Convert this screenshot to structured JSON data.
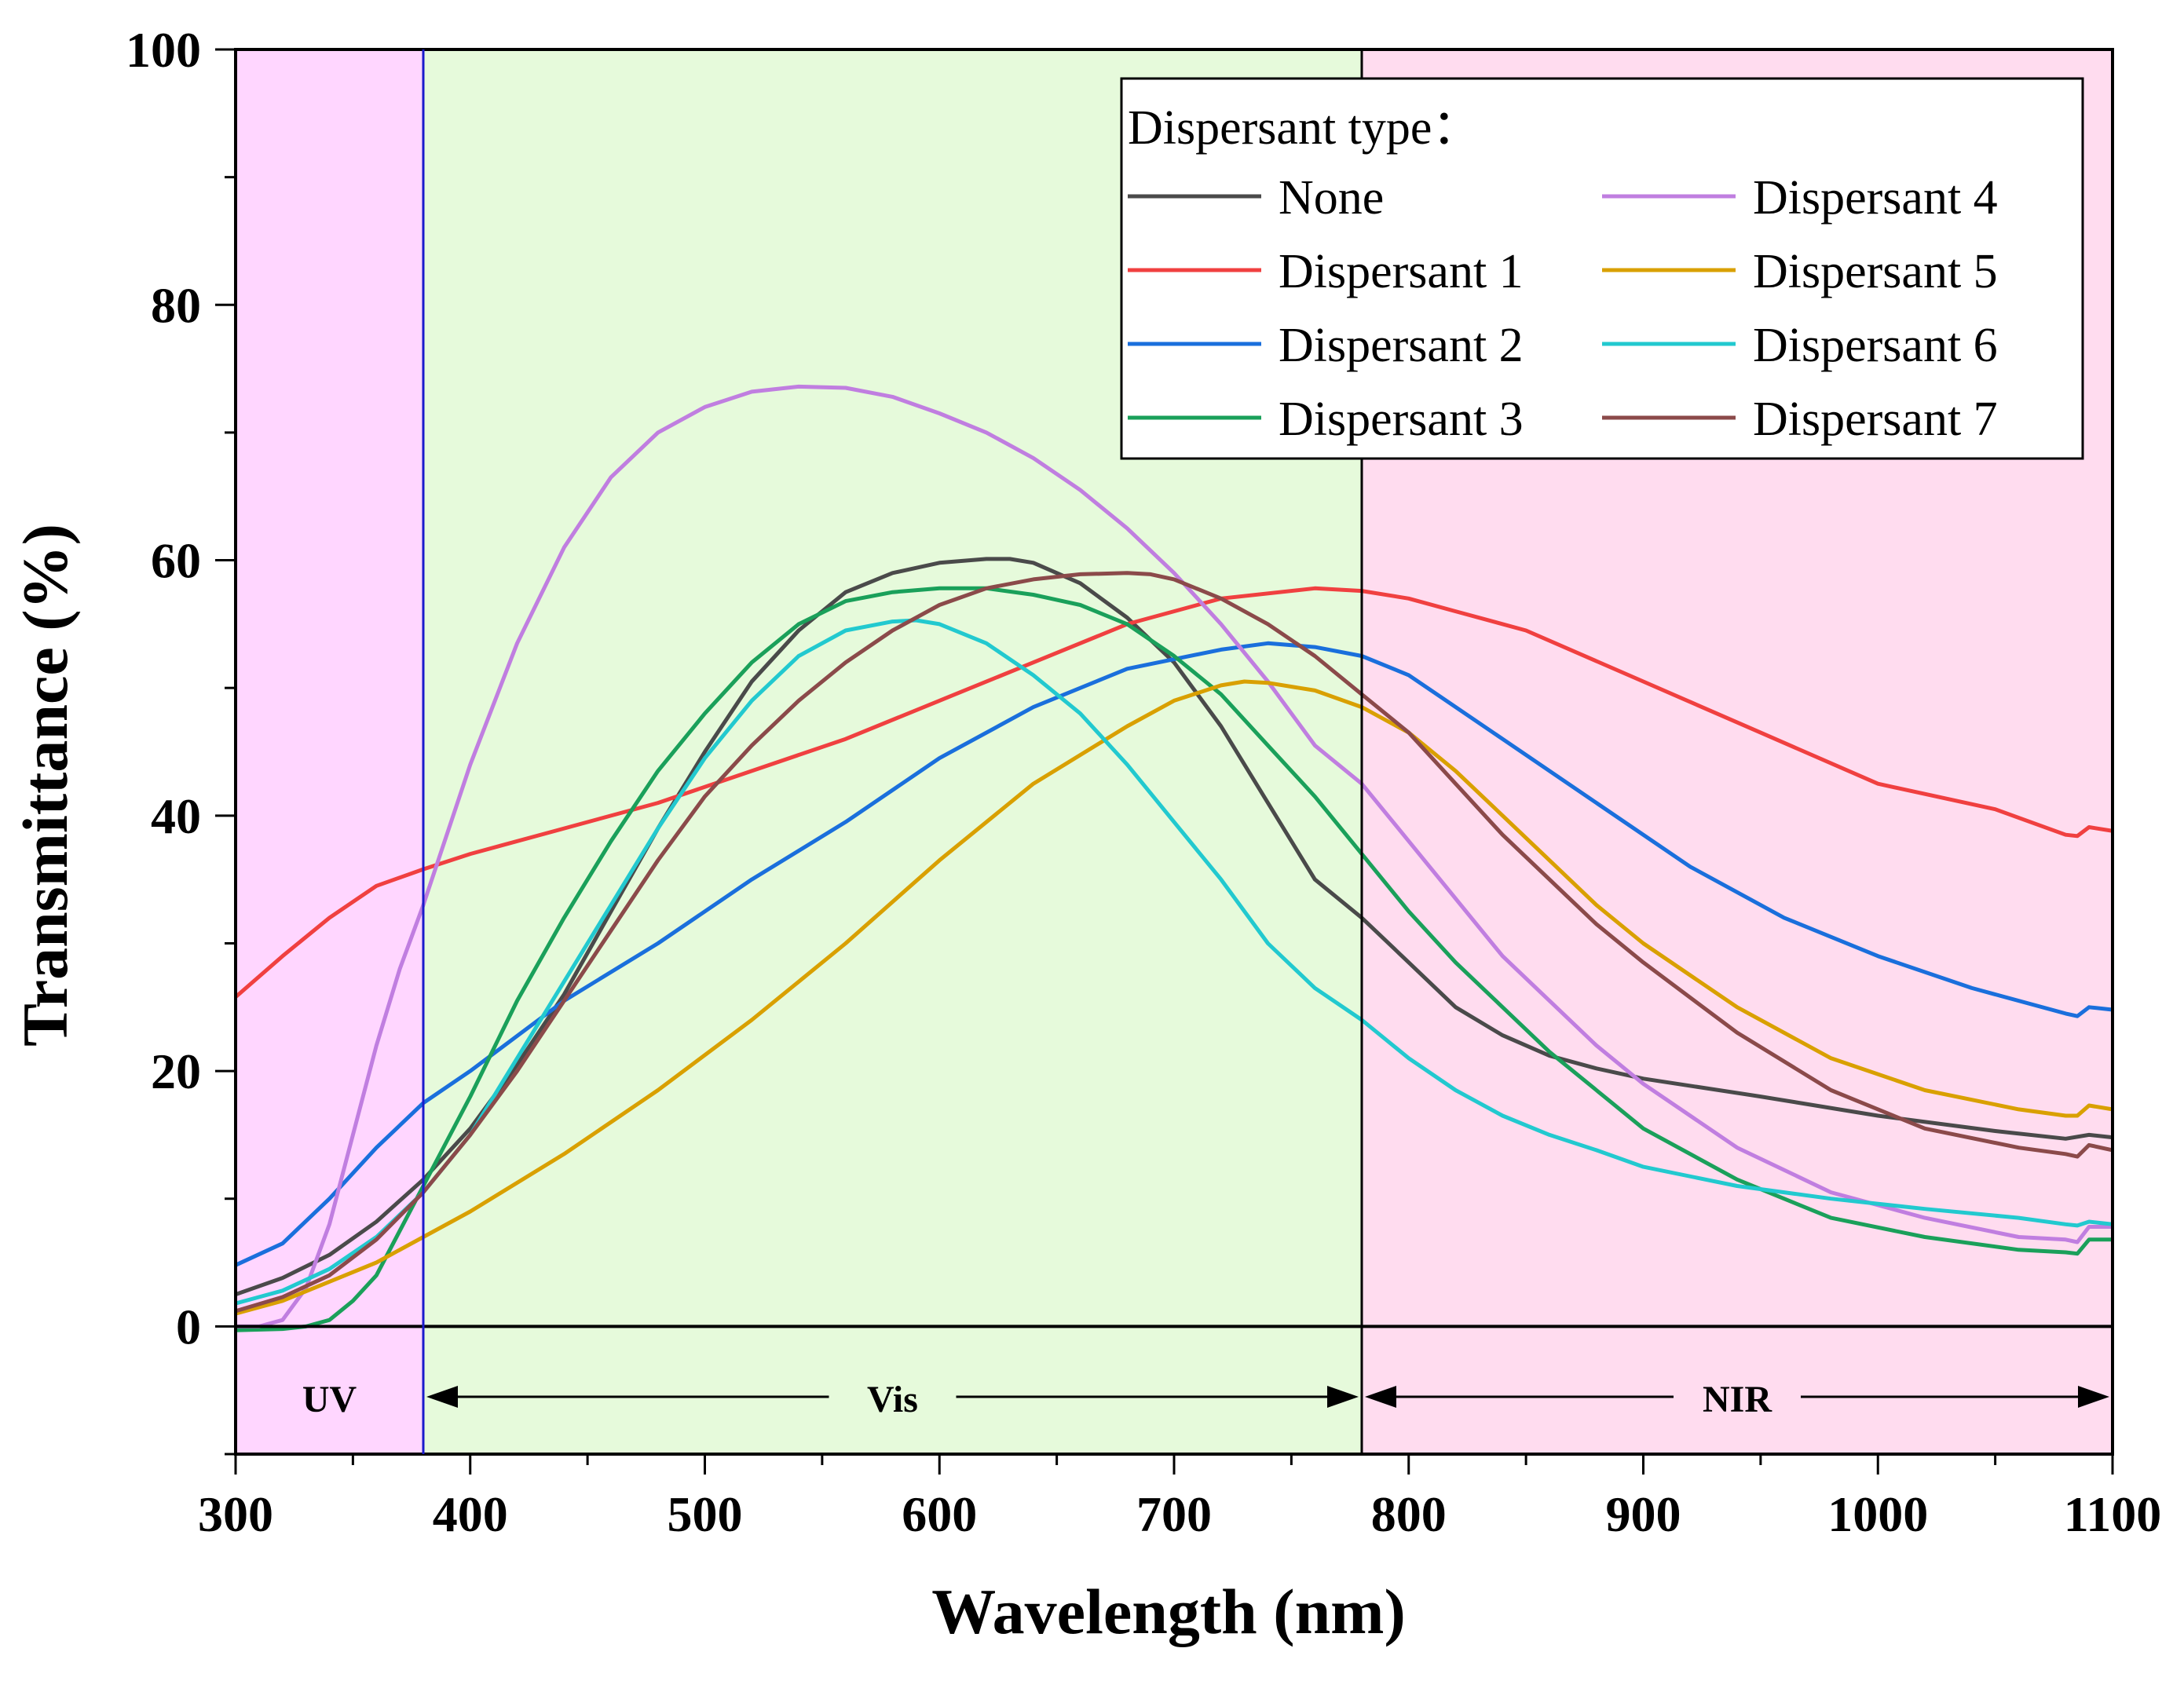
{
  "chart_data": {
    "type": "line",
    "xlabel": "Wavelength (nm)",
    "ylabel": "Transmittance (%)",
    "xlim": [
      300,
      1100
    ],
    "ylim": [
      -10,
      100
    ],
    "x_ticks": [
      "300",
      "400",
      "500",
      "600",
      "700",
      "800",
      "900",
      "1000",
      "1100"
    ],
    "y_ticks": [
      "0",
      "20",
      "40",
      "60",
      "80",
      "100"
    ],
    "regions": [
      {
        "label": "UV",
        "from": 300,
        "to": 380,
        "color": "#ffd6ff"
      },
      {
        "label": "Vis",
        "from": 380,
        "to": 780,
        "color": "#e6fadb"
      },
      {
        "label": "NIR",
        "from": 780,
        "to": 1100,
        "color": "#ffdcef"
      }
    ],
    "legend_title": "Dispersant type：",
    "series": [
      {
        "name": "None",
        "color": "#4a4a4a",
        "x": [
          300,
          320,
          340,
          360,
          380,
          400,
          420,
          440,
          460,
          480,
          500,
          520,
          540,
          560,
          580,
          600,
          620,
          630,
          640,
          660,
          680,
          700,
          720,
          740,
          760,
          780,
          800,
          820,
          840,
          860,
          880,
          900,
          950,
          1000,
          1050,
          1080,
          1090,
          1100
        ],
        "values": [
          2.5,
          3.8,
          5.6,
          8.2,
          11.5,
          15.5,
          20.5,
          26.0,
          32.5,
          39.0,
          45.0,
          50.5,
          54.5,
          57.5,
          59.0,
          59.8,
          60.1,
          60.1,
          59.8,
          58.2,
          55.5,
          52.0,
          47.0,
          41.0,
          35.0,
          32.0,
          28.5,
          25.0,
          22.8,
          21.2,
          20.2,
          19.4,
          18.0,
          16.5,
          15.3,
          14.7,
          15.0,
          14.8
        ]
      },
      {
        "name": "Dispersant 1",
        "color": "#f04040",
        "x": [
          300,
          320,
          340,
          360,
          380,
          400,
          440,
          480,
          520,
          560,
          600,
          640,
          680,
          720,
          760,
          780,
          800,
          820,
          850,
          900,
          950,
          1000,
          1050,
          1080,
          1085,
          1090,
          1100
        ],
        "values": [
          25.8,
          29.0,
          32.0,
          34.5,
          35.8,
          37.0,
          39.0,
          41.0,
          43.5,
          46.0,
          49.0,
          52.0,
          55.0,
          57.0,
          57.8,
          57.6,
          57.0,
          56.0,
          54.5,
          50.5,
          46.5,
          42.5,
          40.5,
          38.5,
          38.4,
          39.1,
          38.8
        ]
      },
      {
        "name": "Dispersant 2",
        "color": "#1a6fdc",
        "x": [
          300,
          320,
          340,
          360,
          380,
          400,
          440,
          480,
          520,
          560,
          600,
          640,
          680,
          720,
          740,
          760,
          780,
          800,
          840,
          880,
          920,
          960,
          1000,
          1040,
          1080,
          1085,
          1090,
          1100
        ],
        "values": [
          4.8,
          6.5,
          10.0,
          14.0,
          17.5,
          20.0,
          25.5,
          30.0,
          35.0,
          39.5,
          44.5,
          48.5,
          51.5,
          53.0,
          53.5,
          53.2,
          52.5,
          51.0,
          46.0,
          41.0,
          36.0,
          32.0,
          29.0,
          26.5,
          24.5,
          24.3,
          25.0,
          24.8
        ]
      },
      {
        "name": "Dispersant 3",
        "color": "#1aa05a",
        "x": [
          300,
          320,
          330,
          340,
          350,
          360,
          380,
          400,
          420,
          440,
          460,
          480,
          500,
          520,
          540,
          560,
          580,
          600,
          620,
          640,
          660,
          680,
          700,
          720,
          740,
          760,
          780,
          800,
          820,
          840,
          860,
          880,
          900,
          940,
          980,
          1020,
          1060,
          1080,
          1085,
          1090,
          1100
        ],
        "values": [
          -0.3,
          -0.2,
          0,
          0.5,
          2.0,
          4.0,
          11.0,
          18.0,
          25.5,
          32.0,
          38.0,
          43.5,
          48.0,
          52.0,
          55.0,
          56.8,
          57.5,
          57.8,
          57.8,
          57.3,
          56.5,
          55.0,
          52.5,
          49.5,
          45.5,
          41.5,
          37.0,
          32.5,
          28.5,
          25.0,
          21.5,
          18.5,
          15.5,
          11.5,
          8.5,
          7.0,
          6.0,
          5.8,
          5.7,
          6.8,
          6.8
        ]
      },
      {
        "name": "Dispersant 4",
        "color": "#c07ee0",
        "x": [
          300,
          310,
          320,
          330,
          340,
          350,
          360,
          370,
          380,
          400,
          420,
          440,
          460,
          480,
          500,
          520,
          540,
          560,
          580,
          600,
          620,
          640,
          660,
          680,
          700,
          720,
          740,
          760,
          780,
          800,
          820,
          840,
          860,
          880,
          900,
          940,
          980,
          1020,
          1060,
          1080,
          1085,
          1090,
          1100
        ],
        "values": [
          0,
          0,
          0.5,
          3.0,
          8.0,
          15.0,
          22.0,
          28.0,
          33.0,
          44.0,
          53.5,
          61.0,
          66.5,
          70.0,
          72.0,
          73.2,
          73.6,
          73.5,
          72.8,
          71.5,
          70.0,
          68.0,
          65.5,
          62.5,
          59.0,
          55.0,
          50.5,
          45.5,
          42.5,
          38.0,
          33.5,
          29.0,
          25.5,
          22.0,
          19.0,
          14.0,
          10.5,
          8.5,
          7.0,
          6.8,
          6.6,
          7.8,
          7.8
        ]
      },
      {
        "name": "Dispersant 5",
        "color": "#d9a000",
        "x": [
          300,
          320,
          340,
          360,
          380,
          400,
          440,
          480,
          520,
          560,
          600,
          640,
          680,
          700,
          720,
          730,
          740,
          760,
          780,
          800,
          820,
          840,
          860,
          880,
          900,
          940,
          980,
          1020,
          1060,
          1080,
          1085,
          1090,
          1100
        ],
        "values": [
          1.0,
          2.0,
          3.5,
          5.0,
          7.0,
          9.0,
          13.5,
          18.5,
          24.0,
          30.0,
          36.5,
          42.5,
          47.0,
          49.0,
          50.2,
          50.5,
          50.4,
          49.8,
          48.5,
          46.5,
          43.5,
          40.0,
          36.5,
          33.0,
          30.0,
          25.0,
          21.0,
          18.5,
          17.0,
          16.5,
          16.5,
          17.3,
          17.0
        ]
      },
      {
        "name": "Dispersant 6",
        "color": "#22c9cf",
        "x": [
          300,
          320,
          340,
          360,
          380,
          400,
          420,
          440,
          460,
          480,
          500,
          520,
          540,
          560,
          580,
          590,
          600,
          620,
          640,
          660,
          680,
          700,
          720,
          740,
          760,
          780,
          800,
          820,
          840,
          860,
          880,
          900,
          940,
          980,
          1020,
          1060,
          1080,
          1085,
          1090,
          1100
        ],
        "values": [
          1.8,
          2.8,
          4.5,
          7.0,
          10.5,
          15.0,
          21.0,
          27.0,
          33.0,
          39.0,
          44.5,
          49.0,
          52.5,
          54.5,
          55.2,
          55.3,
          55.0,
          53.5,
          51.0,
          48.0,
          44.0,
          39.5,
          35.0,
          30.0,
          26.5,
          24.0,
          21.0,
          18.5,
          16.5,
          15.0,
          13.8,
          12.5,
          11.0,
          10.0,
          9.2,
          8.5,
          8.0,
          7.9,
          8.2,
          8.0
        ]
      },
      {
        "name": "Dispersant 7",
        "color": "#8b4a4a",
        "x": [
          300,
          320,
          340,
          360,
          380,
          400,
          420,
          440,
          460,
          480,
          500,
          520,
          540,
          560,
          580,
          600,
          620,
          640,
          660,
          680,
          690,
          700,
          720,
          740,
          760,
          780,
          800,
          820,
          840,
          860,
          880,
          900,
          940,
          980,
          1020,
          1060,
          1080,
          1085,
          1090,
          1100
        ],
        "values": [
          1.2,
          2.3,
          4.0,
          6.8,
          10.5,
          15.0,
          20.0,
          25.5,
          31.0,
          36.5,
          41.5,
          45.5,
          49.0,
          52.0,
          54.5,
          56.5,
          57.8,
          58.5,
          58.9,
          59.0,
          58.9,
          58.5,
          57.0,
          55.0,
          52.5,
          49.5,
          46.5,
          42.5,
          38.5,
          35.0,
          31.5,
          28.5,
          23.0,
          18.5,
          15.5,
          14.0,
          13.5,
          13.3,
          14.2,
          13.8
        ]
      }
    ]
  }
}
